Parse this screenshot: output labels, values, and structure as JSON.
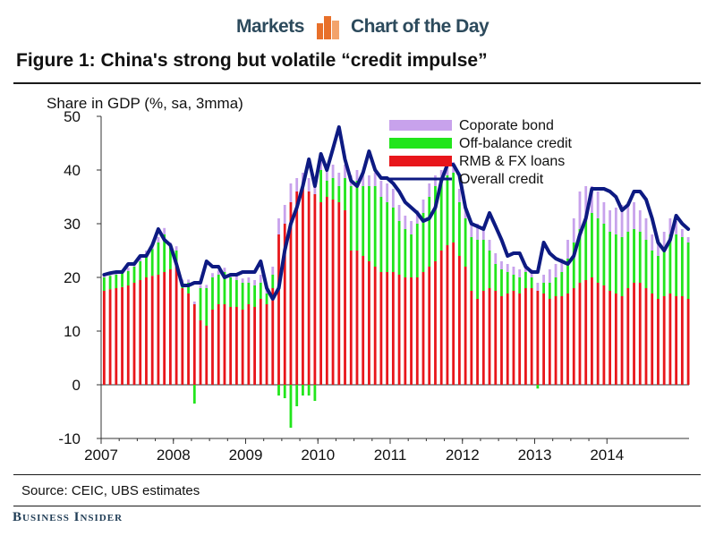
{
  "header": {
    "left": "Markets",
    "right": "Chart of the Day"
  },
  "figure_title": "Figure 1: China's strong but volatile “credit impulse”",
  "source": "Source:  CEIC, UBS estimates",
  "brand": "Business Insider",
  "colors": {
    "rmb": "#e8161b",
    "offbal": "#22e51c",
    "bond": "#c8a2ec",
    "overall": "#0d1a82",
    "brand": "#1f3c55",
    "logo": "#e8702a"
  },
  "chart_data": {
    "type": "bar",
    "title": "Figure 1: China's strong but volatile “credit impulse”",
    "ylabel": "Share in GDP (%, sa, 3mma)",
    "xlabel": "",
    "ylim": [
      -10,
      50
    ],
    "yticks": [
      -10,
      0,
      10,
      20,
      30,
      40,
      50
    ],
    "x_tick_labels": [
      "2007",
      "2008",
      "2009",
      "2010",
      "2011",
      "2012",
      "2013",
      "2014"
    ],
    "start": "2007-01",
    "frequency": "monthly",
    "legend": [
      "Coporate bond",
      "Off-balance credit",
      "RMB & FX loans",
      "Overall credit"
    ],
    "legend_position": "top-right",
    "series": [
      {
        "name": "RMB & FX loans",
        "type": "bar",
        "values": [
          17.5,
          17.8,
          18.0,
          18.2,
          18.5,
          19.0,
          19.5,
          20.0,
          20.3,
          20.5,
          21.0,
          21.5,
          22.0,
          18.0,
          17.0,
          15.0,
          12.0,
          11.0,
          14.0,
          15.0,
          15.0,
          14.5,
          14.5,
          14.0,
          15.0,
          14.5,
          16.0,
          15.0,
          18.0,
          28.0,
          30.0,
          34.0,
          36.0,
          37.0,
          36.0,
          35.5,
          34.0,
          35.0,
          34.5,
          34.0,
          32.5,
          25.0,
          25.0,
          24.0,
          23.0,
          22.0,
          21.0,
          21.0,
          21.0,
          20.5,
          20.0,
          20.0,
          20.0,
          21.0,
          22.0,
          23.0,
          25.0,
          26.0,
          26.5,
          24.0,
          22.0,
          17.5,
          16.0,
          17.5,
          18.0,
          17.5,
          16.5,
          17.0,
          17.5,
          17.0,
          18.0,
          18.0,
          17.5,
          17.0,
          16.0,
          16.5,
          16.5,
          17.0,
          18.0,
          19.0,
          19.5,
          20.0,
          19.0,
          18.5,
          17.5,
          17.0,
          16.5,
          18.0,
          19.0,
          19.0,
          18.0,
          17.0,
          16.0,
          16.5,
          17.0,
          16.5,
          16.5,
          16.0
        ],
        "values_note": "monthly, Jan 2007 – Feb 2015"
      },
      {
        "name": "Off-balance credit",
        "type": "bar",
        "values": [
          2.5,
          2.5,
          2.5,
          2.6,
          2.7,
          3.0,
          3.5,
          4.0,
          5.0,
          6.0,
          7.0,
          4.0,
          3.0,
          1.0,
          2.0,
          -3.5,
          6.0,
          7.0,
          6.0,
          5.5,
          6.0,
          5.5,
          5.0,
          5.0,
          4.0,
          4.0,
          3.0,
          2.0,
          2.5,
          -2.0,
          -2.5,
          -8.0,
          -4.0,
          -2.0,
          -2.0,
          -3.0,
          6.0,
          3.0,
          4.0,
          3.0,
          6.0,
          12.0,
          13.0,
          13.0,
          14.0,
          15.0,
          14.0,
          13.0,
          12.0,
          10.0,
          9.0,
          8.0,
          10.0,
          11.0,
          13.0,
          14.0,
          13.0,
          13.0,
          13.0,
          10.0,
          9.0,
          10.0,
          11.0,
          9.5,
          7.0,
          5.0,
          5.0,
          4.0,
          3.0,
          3.0,
          3.0,
          2.0,
          -0.7,
          2.0,
          3.0,
          3.5,
          4.5,
          6.5,
          8.5,
          10.0,
          11.5,
          12.0,
          12.0,
          11.5,
          11.0,
          11.0,
          11.0,
          10.5,
          10.0,
          9.5,
          9.0,
          8.0,
          8.0,
          9.0,
          11.0,
          11.5,
          11.0,
          10.5
        ],
        "values_note": "monthly, Jan 2007 – Feb 2015"
      },
      {
        "name": "Coporate bond",
        "type": "bar",
        "values": [
          0.5,
          0.5,
          0.5,
          0.6,
          0.6,
          0.8,
          1.0,
          1.0,
          1.0,
          1.0,
          1.2,
          1.0,
          0.8,
          0.6,
          0.6,
          0.5,
          0.6,
          0.6,
          0.8,
          0.8,
          0.8,
          0.8,
          0.8,
          0.8,
          1.0,
          1.0,
          1.5,
          1.5,
          1.5,
          3.0,
          3.5,
          3.5,
          2.5,
          2.5,
          2.5,
          2.5,
          2.5,
          2.5,
          2.5,
          2.5,
          2.5,
          2.0,
          2.0,
          2.0,
          2.0,
          2.5,
          3.0,
          3.5,
          3.5,
          3.0,
          2.5,
          2.5,
          2.5,
          2.5,
          2.5,
          2.0,
          2.0,
          2.0,
          2.0,
          2.5,
          2.5,
          3.0,
          3.0,
          2.5,
          2.0,
          2.0,
          1.5,
          1.5,
          1.5,
          1.5,
          1.5,
          1.5,
          1.5,
          1.5,
          2.5,
          2.5,
          2.5,
          3.5,
          4.5,
          7.0,
          6.0,
          5.0,
          5.0,
          4.0,
          4.0,
          5.0,
          6.0,
          5.5,
          5.0,
          4.0,
          4.0,
          3.0,
          3.0,
          3.0,
          3.0,
          2.5,
          1.5,
          1.0
        ],
        "values_note": "monthly, Jan 2007 – Feb 2015"
      },
      {
        "name": "Overall credit",
        "type": "line",
        "values": [
          20.5,
          20.8,
          21.0,
          21.0,
          22.5,
          22.5,
          24.0,
          24.0,
          26.0,
          29.0,
          27.0,
          26.0,
          22.5,
          18.5,
          18.5,
          19.0,
          19.0,
          23.0,
          22.0,
          22.0,
          20.0,
          20.5,
          20.5,
          21.0,
          21.0,
          21.0,
          23.0,
          18.0,
          16.0,
          18.0,
          25.0,
          30.0,
          33.0,
          37.0,
          42.0,
          37.0,
          43.0,
          40.0,
          44.0,
          48.0,
          42.0,
          38.0,
          37.0,
          39.5,
          43.5,
          40.0,
          38.5,
          38.5,
          37.5,
          36.0,
          34.0,
          33.0,
          32.0,
          30.5,
          31.0,
          33.0,
          38.0,
          41.0,
          41.0,
          39.0,
          33.0,
          30.0,
          29.5,
          29.0,
          32.0,
          29.5,
          27.0,
          24.0,
          24.5,
          24.5,
          22.0,
          21.0,
          21.0,
          26.5,
          24.5,
          23.5,
          23.0,
          22.5,
          24.0,
          28.0,
          31.0,
          36.5,
          36.5,
          36.5,
          36.0,
          35.0,
          32.5,
          33.5,
          36.0,
          36.0,
          34.5,
          31.0,
          26.5,
          25.0,
          27.0,
          31.5,
          30.0,
          29.0
        ],
        "values_note": "monthly, Jan 2007 – Feb 2015"
      }
    ]
  }
}
